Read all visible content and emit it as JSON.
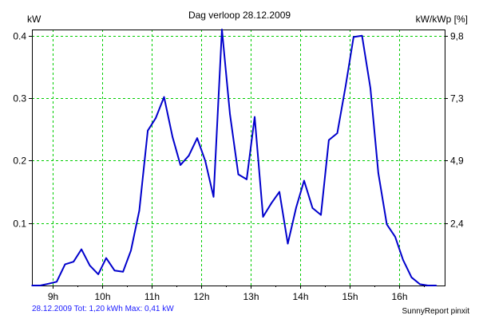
{
  "chart_data": {
    "type": "line",
    "title": "Dag  verloop 28.12.2009",
    "ylabel": "kW",
    "ylabel_right": "kW/kWp [%]",
    "x_ticks": [
      "9h",
      "10h",
      "11h",
      "12h",
      "13h",
      "14h",
      "15h",
      "16h"
    ],
    "y_ticks": [
      "0.1",
      "0.2",
      "0.3",
      "0.4"
    ],
    "y_ticks_right": [
      "2,4",
      "4,9",
      "7,3",
      "9,8"
    ],
    "xlim": [
      8.58,
      16.92
    ],
    "ylim": [
      0,
      0.41
    ],
    "grid": true,
    "series": [
      {
        "color": "#0000cc",
        "x": [
          8.58,
          8.75,
          8.92,
          9.08,
          9.25,
          9.42,
          9.58,
          9.75,
          9.92,
          10.08,
          10.25,
          10.42,
          10.58,
          10.75,
          10.92,
          11.08,
          11.25,
          11.42,
          11.58,
          11.75,
          11.92,
          12.08,
          12.25,
          12.42,
          12.58,
          12.75,
          12.92,
          13.08,
          13.25,
          13.42,
          13.58,
          13.75,
          13.92,
          14.08,
          14.25,
          14.42,
          14.58,
          14.75,
          14.92,
          15.08,
          15.25,
          15.42,
          15.58,
          15.75,
          15.92,
          16.08,
          16.25,
          16.42,
          16.58,
          16.75
        ],
        "values": [
          0.0,
          0.0,
          0.003,
          0.006,
          0.034,
          0.038,
          0.058,
          0.032,
          0.018,
          0.044,
          0.024,
          0.022,
          0.056,
          0.12,
          0.248,
          0.268,
          0.302,
          0.238,
          0.193,
          0.208,
          0.236,
          0.2,
          0.142,
          0.41,
          0.275,
          0.178,
          0.17,
          0.27,
          0.11,
          0.132,
          0.15,
          0.067,
          0.125,
          0.168,
          0.124,
          0.113,
          0.233,
          0.244,
          0.32,
          0.398,
          0.4,
          0.316,
          0.18,
          0.098,
          0.078,
          0.041,
          0.013,
          0.002,
          0.0,
          0.0
        ]
      }
    ]
  },
  "footer": {
    "summary": "28.12.2009 Tot: 1,20 kWh Max: 0,41 kW",
    "credit": "SunnyReport pinxit"
  }
}
